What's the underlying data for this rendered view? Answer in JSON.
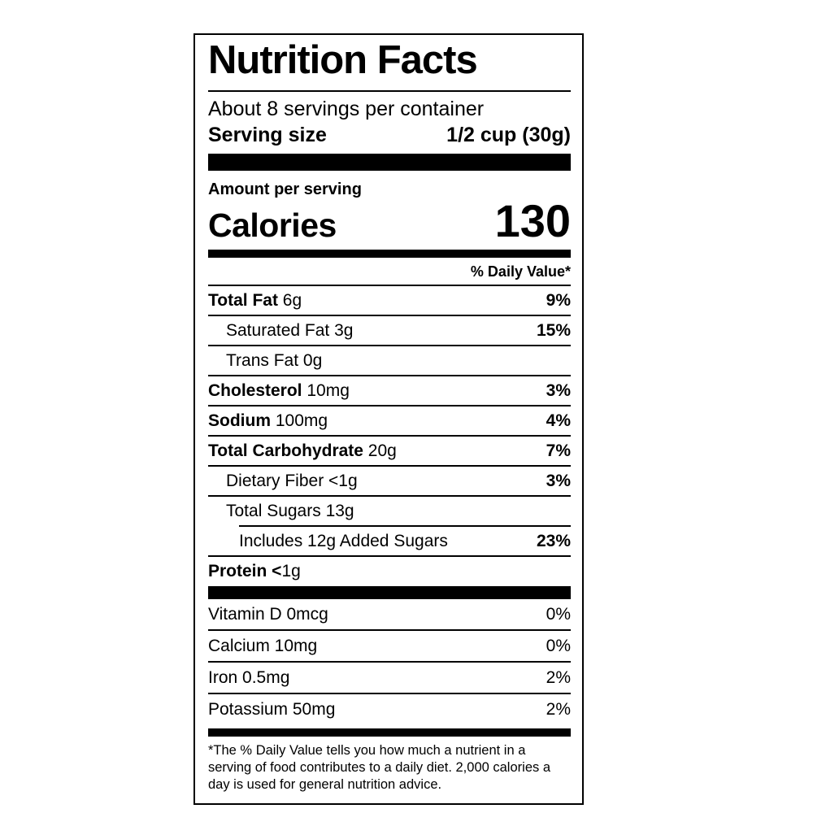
{
  "colors": {
    "text": "#000000",
    "background": "#ffffff",
    "divider": "#000000"
  },
  "label": {
    "title": "Nutrition Facts",
    "servings_per_container": "About 8 servings per container",
    "serving_size": {
      "label": "Serving size",
      "value": "1/2 cup (30g)"
    },
    "calories": {
      "section_label": "Amount per serving",
      "label": "Calories",
      "value": "130"
    },
    "daily_value_header": "% Daily Value*",
    "nutrients": [
      {
        "bold": "Total Fat",
        "rest": " 6g",
        "dv": "9%"
      },
      {
        "bold": "",
        "rest": "Saturated Fat 3g",
        "dv": "15%"
      },
      {
        "bold": "",
        "rest": "Trans Fat 0g",
        "dv": ""
      },
      {
        "bold": "Cholesterol",
        "rest": " 10mg",
        "dv": "3%"
      },
      {
        "bold": "Sodium",
        "rest": " 100mg",
        "dv": "4%"
      },
      {
        "bold": "Total Carbohydrate",
        "rest": " 20g",
        "dv": "7%"
      },
      {
        "bold": "",
        "rest": "Dietary Fiber <1g",
        "dv": "3%"
      },
      {
        "bold": "",
        "rest": "Total Sugars 13g",
        "dv": ""
      },
      {
        "bold": "",
        "rest": "Includes 12g Added Sugars",
        "dv": "23%"
      },
      {
        "bold": "Protein <",
        "rest": "1g",
        "dv": ""
      }
    ],
    "vitamins": [
      {
        "text": "Vitamin D 0mcg",
        "dv": "0%"
      },
      {
        "text": "Calcium 10mg",
        "dv": "0%"
      },
      {
        "text": "Iron 0.5mg",
        "dv": "2%"
      },
      {
        "text": "Potassium 50mg",
        "dv": "2%"
      }
    ],
    "footnote": "*The % Daily Value tells you how much a nutrient in a serving of food contributes to a daily diet. 2,000 calories a day is used for general nutrition advice."
  }
}
